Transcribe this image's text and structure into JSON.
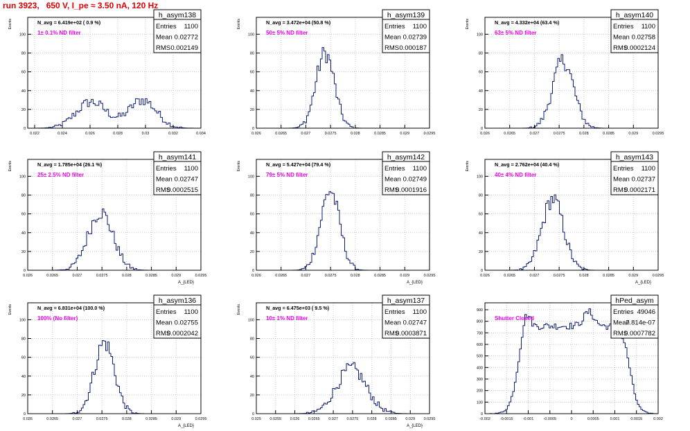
{
  "run_title": "run 3923,   650 V, I_pe ≈ 3.50 nA, 120 Hz",
  "colors": {
    "hist": "#0a1a7a",
    "filter_label": "#ee00ee",
    "run_title": "#e00000",
    "grid": "#c8c8c8",
    "frame": "#000000"
  },
  "stat_labels": [
    "Entries",
    "Mean",
    "RMS"
  ],
  "chart_data": [
    {
      "type": "histogram",
      "name": "h_asym138",
      "entries": "1100",
      "mean": "0.02772",
      "rms": "0.002149",
      "navg": "N_avg = 6.419e+02 ( 0.9 %)",
      "filter_label": "1± 0.1% ND filter",
      "ylabel": "Events",
      "xlabel": "",
      "xlim": [
        0.0215,
        0.034
      ],
      "ylim": [
        0,
        118
      ],
      "xticks": [
        0.022,
        0.024,
        0.026,
        0.028,
        0.03,
        0.032,
        0.034
      ],
      "xticklabels": [
        "0.022",
        "0.024",
        "0.026",
        "0.028",
        "0.03",
        "0.032",
        "0.034"
      ],
      "yticks": [
        0,
        20,
        40,
        60,
        80,
        100
      ],
      "peaks": [
        {
          "mu": 0.0261,
          "sigma": 0.0011,
          "amp": 28
        },
        {
          "mu": 0.0298,
          "sigma": 0.001,
          "amp": 30
        }
      ],
      "bins": 90
    },
    {
      "type": "histogram",
      "name": "h_asym139",
      "entries": "1100",
      "mean": "0.02739",
      "rms": "0.000187",
      "navg": "N_avg = 3.472e+04 (50.8 %)",
      "filter_label": "50± 5% ND filter",
      "ylabel": "Events",
      "xlabel": "",
      "xlim": [
        0.026,
        0.0295
      ],
      "ylim": [
        0,
        118
      ],
      "xticks": [
        0.026,
        0.0265,
        0.027,
        0.0275,
        0.028,
        0.0285,
        0.029,
        0.0295
      ],
      "xticklabels": [
        "0.026",
        "0.0265",
        "0.027",
        "0.0275",
        "0.028",
        "0.0285",
        "0.029",
        "0.0295"
      ],
      "yticks": [
        0,
        20,
        40,
        60,
        80,
        100
      ],
      "peaks": [
        {
          "mu": 0.02739,
          "sigma": 0.000187,
          "amp": 80
        }
      ],
      "bins": 100
    },
    {
      "type": "histogram",
      "name": "h_asym140",
      "entries": "1100",
      "mean": "0.02758",
      "rms": "0.0002124",
      "navg": "N_avg = 4.332e+04 (63.4 %)",
      "filter_label": "63± 5% ND filter",
      "ylabel": "Events",
      "xlabel": "",
      "xlim": [
        0.026,
        0.0295
      ],
      "ylim": [
        0,
        118
      ],
      "xticks": [
        0.026,
        0.0265,
        0.027,
        0.0275,
        0.028,
        0.0285,
        0.029,
        0.0295
      ],
      "xticklabels": [
        "0.026",
        "0.0265",
        "0.027",
        "0.0275",
        "0.028",
        "0.0285",
        "0.029",
        "0.0295"
      ],
      "yticks": [
        0,
        20,
        40,
        60,
        80,
        100
      ],
      "peaks": [
        {
          "mu": 0.02758,
          "sigma": 0.000212,
          "amp": 72
        }
      ],
      "bins": 100
    },
    {
      "type": "histogram",
      "name": "h_asym141",
      "entries": "1100",
      "mean": "0.02747",
      "rms": "0.0002515",
      "navg": "N_avg = 1.785e+04 (26.1 %)",
      "filter_label": "25± 2.5% ND filter",
      "ylabel": "Events",
      "xlabel": "A_{LED}",
      "xlim": [
        0.026,
        0.0295
      ],
      "ylim": [
        0,
        118
      ],
      "xticks": [
        0.026,
        0.0265,
        0.027,
        0.0275,
        0.028,
        0.0285,
        0.029,
        0.0295
      ],
      "xticklabels": [
        "0.026",
        "0.0265",
        "0.027",
        "0.0275",
        "0.028",
        "0.0285",
        "0.029",
        "0.0295"
      ],
      "yticks": [
        0,
        20,
        40,
        60,
        80,
        100
      ],
      "peaks": [
        {
          "mu": 0.02747,
          "sigma": 0.000251,
          "amp": 62
        }
      ],
      "bins": 100
    },
    {
      "type": "histogram",
      "name": "h_asym142",
      "entries": "1100",
      "mean": "0.02749",
      "rms": "0.0001916",
      "navg": "N_avg = 5.427e+04 (79.4 %)",
      "filter_label": "79± 5% ND filter",
      "ylabel": "Events",
      "xlabel": "A_{LED}",
      "xlim": [
        0.026,
        0.0295
      ],
      "ylim": [
        0,
        118
      ],
      "xticks": [
        0.026,
        0.0265,
        0.027,
        0.0275,
        0.028,
        0.0285,
        0.029,
        0.0295
      ],
      "xticklabels": [
        "0.026",
        "0.0265",
        "0.027",
        "0.0275",
        "0.028",
        "0.0285",
        "0.029",
        "0.0295"
      ],
      "yticks": [
        0,
        20,
        40,
        60,
        80,
        100
      ],
      "peaks": [
        {
          "mu": 0.02749,
          "sigma": 0.000192,
          "amp": 85
        }
      ],
      "bins": 100
    },
    {
      "type": "histogram",
      "name": "h_asym143",
      "entries": "1100",
      "mean": "0.02737",
      "rms": "0.0002171",
      "navg": "N_avg = 2.762e+04 (40.4 %)",
      "filter_label": "40± 4% ND filter",
      "ylabel": "Events",
      "xlabel": "A_{LED}",
      "xlim": [
        0.026,
        0.0295
      ],
      "ylim": [
        0,
        118
      ],
      "xticks": [
        0.026,
        0.0265,
        0.027,
        0.0275,
        0.028,
        0.0285,
        0.029,
        0.0295
      ],
      "xticklabels": [
        "0.026",
        "0.0265",
        "0.027",
        "0.0275",
        "0.028",
        "0.0285",
        "0.029",
        "0.0295"
      ],
      "yticks": [
        0,
        20,
        40,
        60,
        80,
        100
      ],
      "peaks": [
        {
          "mu": 0.02737,
          "sigma": 0.000217,
          "amp": 76
        }
      ],
      "bins": 100
    },
    {
      "type": "histogram",
      "name": "h_asym136",
      "entries": "1100",
      "mean": "0.02755",
      "rms": "0.0002042",
      "navg": "N_avg = 6.831e+04 (100.0 %)",
      "filter_label": "100% (No filter)",
      "ylabel": "Events",
      "xlabel": "A_{LED}",
      "xlim": [
        0.026,
        0.0295
      ],
      "ylim": [
        0,
        118
      ],
      "xticks": [
        0.026,
        0.0265,
        0.027,
        0.0275,
        0.028,
        0.0285,
        0.029,
        0.0295
      ],
      "xticklabels": [
        "0.026",
        "0.0265",
        "0.027",
        "0.0275",
        "0.028",
        "0.0285",
        "0.029",
        "0.0295"
      ],
      "yticks": [
        0,
        20,
        40,
        60,
        80,
        100
      ],
      "peaks": [
        {
          "mu": 0.02755,
          "sigma": 0.000204,
          "amp": 76
        }
      ],
      "bins": 100
    },
    {
      "type": "histogram",
      "name": "h_asym137",
      "entries": "1100",
      "mean": "0.02747",
      "rms": "0.0003871",
      "navg": "N_avg = 6.475e+03 ( 9.5 %)",
      "filter_label": "10± 1% ND filter",
      "ylabel": "Events",
      "xlabel": "A_{LED}",
      "xlim": [
        0.025,
        0.0295
      ],
      "ylim": [
        0,
        118
      ],
      "xticks": [
        0.025,
        0.0255,
        0.026,
        0.0265,
        0.027,
        0.0275,
        0.028,
        0.0285,
        0.029,
        0.0295
      ],
      "xticklabels": [
        "0.025",
        "0.0255",
        "0.026",
        "0.0265",
        "0.027",
        "0.0275",
        "0.028",
        "0.0285",
        "0.029",
        "0.0295"
      ],
      "yticks": [
        0,
        20,
        40,
        60,
        80,
        100
      ],
      "peaks": [
        {
          "mu": 0.02747,
          "sigma": 0.000387,
          "amp": 48
        }
      ],
      "bins": 100
    },
    {
      "type": "histogram",
      "name": "hPed_asym",
      "entries": "49046",
      "mean": "7.814e-07",
      "rms": "0.0007782",
      "navg": "",
      "filter_label": "Shutter Closed",
      "ylabel": "",
      "xlabel": "",
      "xlim": [
        -0.002,
        0.002
      ],
      "ylim": [
        0,
        960
      ],
      "xticks": [
        -0.002,
        -0.0015,
        -0.001,
        -0.0005,
        0,
        0.0005,
        0.001,
        0.0015,
        0.002
      ],
      "xticklabels": [
        "-0.002",
        "-0.0015",
        "-0.001",
        "-0.0005",
        "0",
        "0.0005",
        "0.001",
        "0.0015",
        "0.002"
      ],
      "yticks": [
        0,
        100,
        200,
        300,
        400,
        500,
        600,
        700,
        800,
        900
      ],
      "peaks": [
        {
          "mu": -0.00105,
          "sigma": 9e-05,
          "amp": 160
        },
        {
          "mu": 0.0004,
          "sigma": 0.00012,
          "amp": 120
        }
      ],
      "plateau": {
        "x0": -0.00125,
        "x1": 0.00135,
        "level": 760,
        "edge": 9e-05
      },
      "bins": 100
    }
  ]
}
